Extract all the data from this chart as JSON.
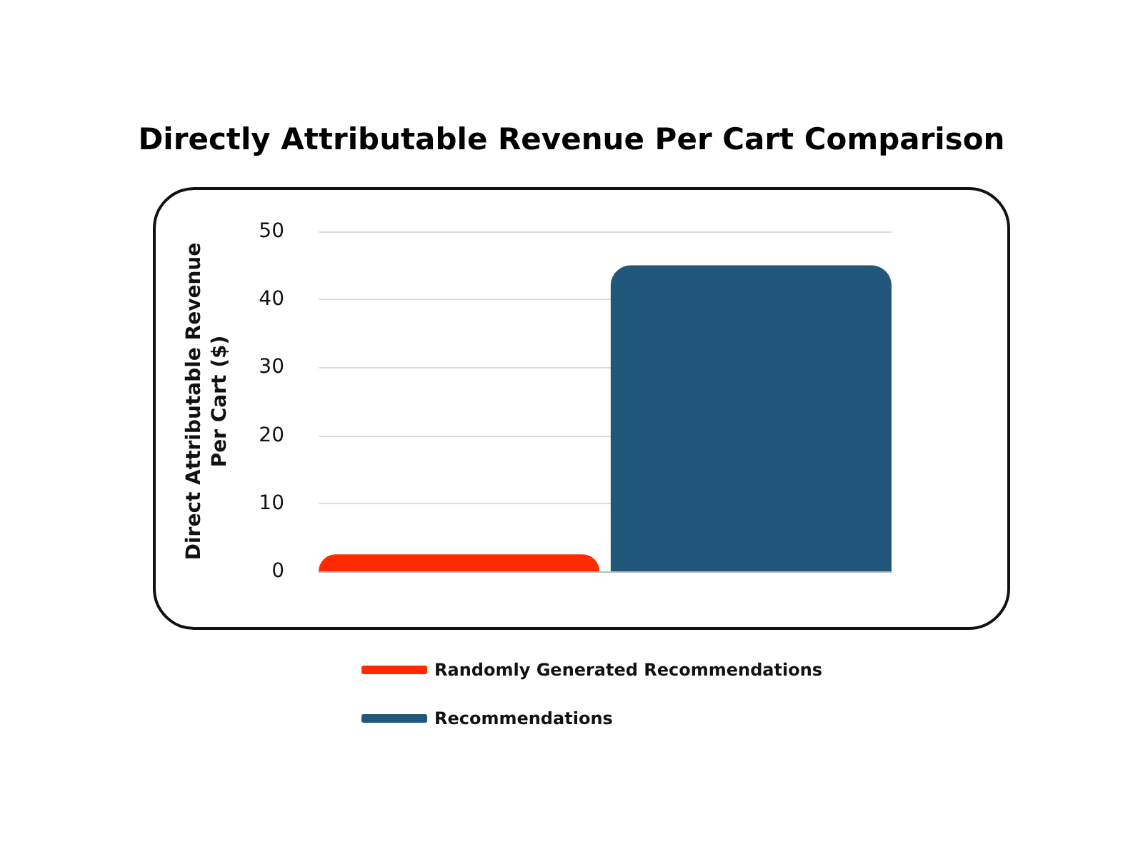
{
  "chart_data": {
    "type": "bar",
    "title": "Directly Attributable Revenue Per Cart Comparison",
    "ylabel": "Direct Attributable Revenue\nPer Cart ($)",
    "categories": [
      null
    ],
    "series": [
      {
        "name": "Randomly Generated Recommendations",
        "color": "#ff2a00",
        "values": [
          2.5
        ]
      },
      {
        "name": "Recommendations",
        "color": "#20577a",
        "values": [
          45
        ]
      }
    ],
    "ylim": [
      0,
      50
    ],
    "yticks": [
      0,
      10,
      20,
      30,
      40,
      50
    ],
    "grid": "y",
    "legend": "bottom"
  }
}
